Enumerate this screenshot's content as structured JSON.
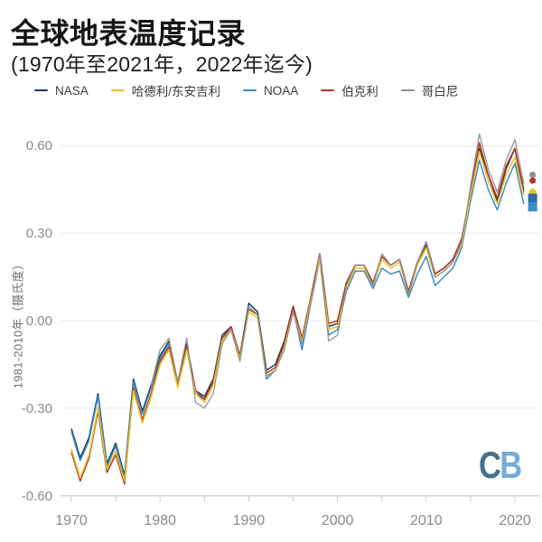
{
  "header": {
    "title": "全球地表温度记录",
    "subtitle": "(1970年至2021年，2022年迄今)"
  },
  "watermark": {
    "c": "C",
    "b": "B",
    "c_color": "#42708f",
    "b_color": "#74abd8"
  },
  "chart_data": {
    "type": "line",
    "title": "全球地表温度记录",
    "subtitle": "(1970年至2021年，2022年迄今)",
    "ylabel": "1981-2010年（摄氏度）",
    "ylim": [
      -0.6,
      0.6
    ],
    "grid": "horizontal",
    "legend_position": "top",
    "y_ticks": [
      "0.60",
      "0.30",
      "0.00",
      "-0.30",
      "-0.60"
    ],
    "y_tick_values": [
      0.6,
      0.3,
      0.0,
      -0.3,
      -0.6
    ],
    "x_ticks": [
      1970,
      1980,
      1990,
      2000,
      2010,
      2020
    ],
    "x_minor_ticks": [
      1975,
      1985,
      1995,
      2005,
      2015
    ],
    "years": [
      1970,
      1971,
      1972,
      1973,
      1974,
      1975,
      1976,
      1977,
      1978,
      1979,
      1980,
      1981,
      1982,
      1983,
      1984,
      1985,
      1986,
      1987,
      1988,
      1989,
      1990,
      1991,
      1992,
      1993,
      1994,
      1995,
      1996,
      1997,
      1998,
      1999,
      2000,
      2001,
      2002,
      2003,
      2004,
      2005,
      2006,
      2007,
      2008,
      2009,
      2010,
      2011,
      2012,
      2013,
      2014,
      2015,
      2016,
      2017,
      2018,
      2019,
      2020,
      2021
    ],
    "series": [
      {
        "name": "NASA",
        "color": "#1b3a5e",
        "values": [
          -0.37,
          -0.47,
          -0.4,
          -0.25,
          -0.49,
          -0.42,
          -0.53,
          -0.2,
          -0.31,
          -0.22,
          -0.12,
          -0.07,
          -0.21,
          -0.08,
          -0.24,
          -0.26,
          -0.2,
          -0.05,
          -0.02,
          -0.12,
          0.06,
          0.03,
          -0.17,
          -0.15,
          -0.07,
          0.05,
          -0.06,
          0.08,
          0.23,
          -0.02,
          -0.01,
          0.13,
          0.19,
          0.19,
          0.13,
          0.22,
          0.19,
          0.21,
          0.1,
          0.2,
          0.26,
          0.16,
          0.18,
          0.21,
          0.28,
          0.44,
          0.59,
          0.5,
          0.41,
          0.52,
          0.59,
          0.44
        ]
      },
      {
        "name": "哈德利/东安吉利",
        "color": "#eec11d",
        "values": [
          -0.44,
          -0.54,
          -0.46,
          -0.3,
          -0.51,
          -0.45,
          -0.55,
          -0.24,
          -0.35,
          -0.26,
          -0.15,
          -0.1,
          -0.23,
          -0.1,
          -0.25,
          -0.28,
          -0.22,
          -0.07,
          -0.03,
          -0.13,
          0.03,
          0.01,
          -0.19,
          -0.17,
          -0.09,
          0.03,
          -0.07,
          0.07,
          0.21,
          -0.03,
          -0.02,
          0.11,
          0.18,
          0.18,
          0.12,
          0.21,
          0.18,
          0.2,
          0.09,
          0.19,
          0.25,
          0.15,
          0.17,
          0.2,
          0.26,
          0.43,
          0.58,
          0.48,
          0.4,
          0.5,
          0.56,
          0.43
        ]
      },
      {
        "name": "NOAA",
        "color": "#3a8dc3",
        "values": [
          -0.38,
          -0.48,
          -0.41,
          -0.26,
          -0.5,
          -0.43,
          -0.54,
          -0.21,
          -0.32,
          -0.23,
          -0.13,
          -0.08,
          -0.22,
          -0.09,
          -0.25,
          -0.27,
          -0.21,
          -0.06,
          -0.03,
          -0.13,
          0.04,
          0.02,
          -0.2,
          -0.17,
          -0.09,
          0.04,
          -0.1,
          0.06,
          0.21,
          -0.05,
          -0.03,
          0.1,
          0.17,
          0.17,
          0.11,
          0.18,
          0.16,
          0.17,
          0.08,
          0.16,
          0.22,
          0.12,
          0.15,
          0.18,
          0.25,
          0.41,
          0.55,
          0.45,
          0.38,
          0.47,
          0.54,
          0.4
        ]
      },
      {
        "name": "伯克利",
        "color": "#b2342a",
        "values": [
          -0.45,
          -0.55,
          -0.47,
          -0.31,
          -0.52,
          -0.46,
          -0.56,
          -0.23,
          -0.34,
          -0.25,
          -0.14,
          -0.09,
          -0.22,
          -0.09,
          -0.24,
          -0.27,
          -0.21,
          -0.06,
          -0.02,
          -0.12,
          0.04,
          0.02,
          -0.18,
          -0.16,
          -0.08,
          0.05,
          -0.06,
          0.08,
          0.23,
          -0.01,
          0.0,
          0.13,
          0.19,
          0.19,
          0.13,
          0.22,
          0.19,
          0.21,
          0.1,
          0.2,
          0.27,
          0.16,
          0.18,
          0.21,
          0.28,
          0.44,
          0.61,
          0.5,
          0.42,
          0.53,
          0.59,
          0.45
        ]
      },
      {
        "name": "哥白尼",
        "color": "#909090",
        "values": [
          null,
          null,
          null,
          null,
          null,
          null,
          null,
          null,
          null,
          -0.22,
          -0.1,
          -0.06,
          -0.21,
          -0.06,
          -0.28,
          -0.3,
          -0.25,
          -0.08,
          -0.03,
          -0.14,
          0.05,
          0.02,
          -0.19,
          -0.17,
          -0.1,
          0.03,
          -0.08,
          0.06,
          0.23,
          -0.07,
          -0.05,
          0.12,
          0.19,
          0.19,
          0.12,
          0.23,
          0.19,
          0.21,
          0.09,
          0.2,
          0.27,
          0.15,
          0.17,
          0.2,
          0.27,
          0.46,
          0.64,
          0.52,
          0.44,
          0.55,
          0.62,
          0.47
        ]
      }
    ],
    "markers_2022": {
      "x": 2022,
      "points": [
        {
          "series": "哥白尼",
          "value": 0.5,
          "shape": "circle",
          "color": "#909090"
        },
        {
          "series": "伯克利",
          "value": 0.48,
          "shape": "circle",
          "color": "#b2342a"
        },
        {
          "series": "哈德利/东安吉利",
          "value": 0.44,
          "shape": "circle",
          "color": "#eec11d"
        },
        {
          "series": "NASA",
          "value": 0.42,
          "shape": "square",
          "color": "#2c6ea5"
        },
        {
          "series": "NOAA",
          "value": 0.39,
          "shape": "square",
          "color": "#3a8dc3"
        }
      ]
    }
  }
}
